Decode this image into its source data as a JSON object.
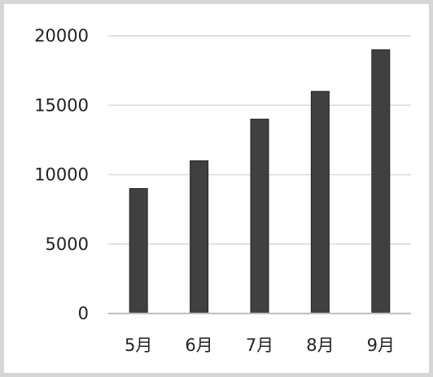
{
  "chart_data": {
    "type": "bar",
    "title": "",
    "xlabel": "",
    "ylabel": "",
    "categories": [
      "5月",
      "6月",
      "7月",
      "8月",
      "9月"
    ],
    "values": [
      9000,
      11000,
      14000,
      16000,
      19000
    ],
    "ylim": [
      0,
      20000
    ],
    "yticks": [
      "0",
      "5000",
      "10000",
      "15000",
      "20000"
    ],
    "grid": true,
    "legend": "none",
    "colors": {
      "bar": "#404040",
      "bar_edge": "#262626",
      "grid": "#d9d9d9",
      "axis": "#bfbfbf",
      "border": "#d6d6d6"
    }
  }
}
